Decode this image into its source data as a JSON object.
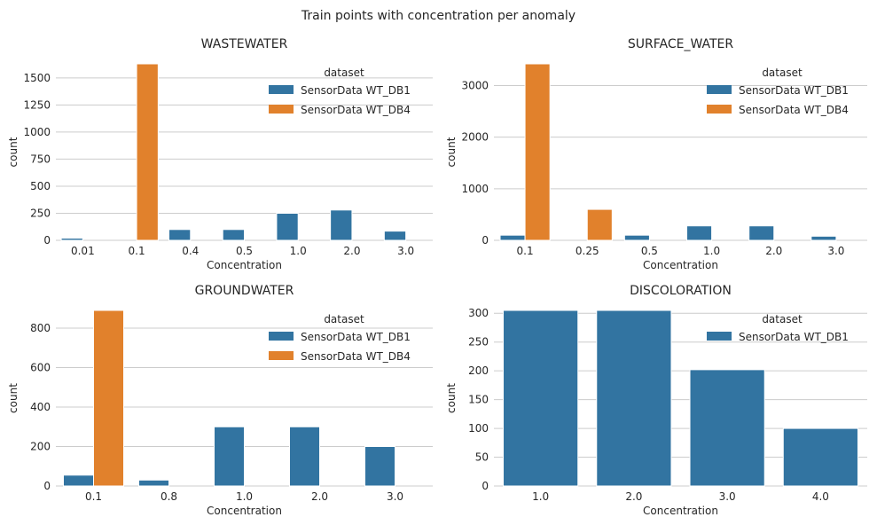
{
  "figure_title": "Train points with concentration per anomaly",
  "colors": {
    "SensorData WT_DB1": "#3274a1",
    "SensorData WT_DB4": "#e1812c"
  },
  "chart_data": [
    {
      "type": "bar",
      "title": "WASTEWATER",
      "xlabel": "Concentration",
      "ylabel": "count",
      "categories": [
        "0.01",
        "0.1",
        "0.4",
        "0.5",
        "1.0",
        "2.0",
        "3.0"
      ],
      "ylim": [
        0,
        1630
      ],
      "yticks": [
        0,
        250,
        500,
        750,
        1000,
        1250,
        1500
      ],
      "legend_title": "dataset",
      "legend_placement": "top-right",
      "series": [
        {
          "name": "SensorData WT_DB1",
          "values": [
            20,
            null,
            100,
            100,
            250,
            280,
            85
          ]
        },
        {
          "name": "SensorData WT_DB4",
          "values": [
            null,
            1630,
            null,
            null,
            null,
            null,
            null
          ]
        }
      ]
    },
    {
      "type": "bar",
      "title": "SURFACE_WATER",
      "xlabel": "Concentration",
      "ylabel": "count",
      "categories": [
        "0.1",
        "0.25",
        "0.5",
        "1.0",
        "2.0",
        "3.0"
      ],
      "ylim": [
        0,
        3420
      ],
      "yticks": [
        0,
        1000,
        2000,
        3000
      ],
      "legend_title": "dataset",
      "legend_placement": "top-right",
      "series": [
        {
          "name": "SensorData WT_DB1",
          "values": [
            100,
            null,
            100,
            280,
            280,
            80
          ]
        },
        {
          "name": "SensorData WT_DB4",
          "values": [
            3420,
            600,
            null,
            null,
            null,
            null
          ]
        }
      ]
    },
    {
      "type": "bar",
      "title": "GROUNDWATER",
      "xlabel": "Concentration",
      "ylabel": "count",
      "categories": [
        "0.1",
        "0.8",
        "1.0",
        "2.0",
        "3.0"
      ],
      "ylim": [
        0,
        890
      ],
      "yticks": [
        0,
        200,
        400,
        600,
        800
      ],
      "legend_title": "dataset",
      "legend_placement": "top-right",
      "series": [
        {
          "name": "SensorData WT_DB1",
          "values": [
            55,
            30,
            300,
            300,
            200
          ]
        },
        {
          "name": "SensorData WT_DB4",
          "values": [
            890,
            null,
            null,
            null,
            null
          ]
        }
      ]
    },
    {
      "type": "bar",
      "title": "DISCOLORATION",
      "xlabel": "Concentration",
      "ylabel": "count",
      "categories": [
        "1.0",
        "2.0",
        "3.0",
        "4.0"
      ],
      "ylim": [
        0,
        305
      ],
      "yticks": [
        0,
        50,
        100,
        150,
        200,
        250,
        300
      ],
      "legend_title": "dataset",
      "legend_placement": "top-right",
      "series": [
        {
          "name": "SensorData WT_DB1",
          "values": [
            305,
            305,
            202,
            100
          ]
        }
      ]
    }
  ]
}
